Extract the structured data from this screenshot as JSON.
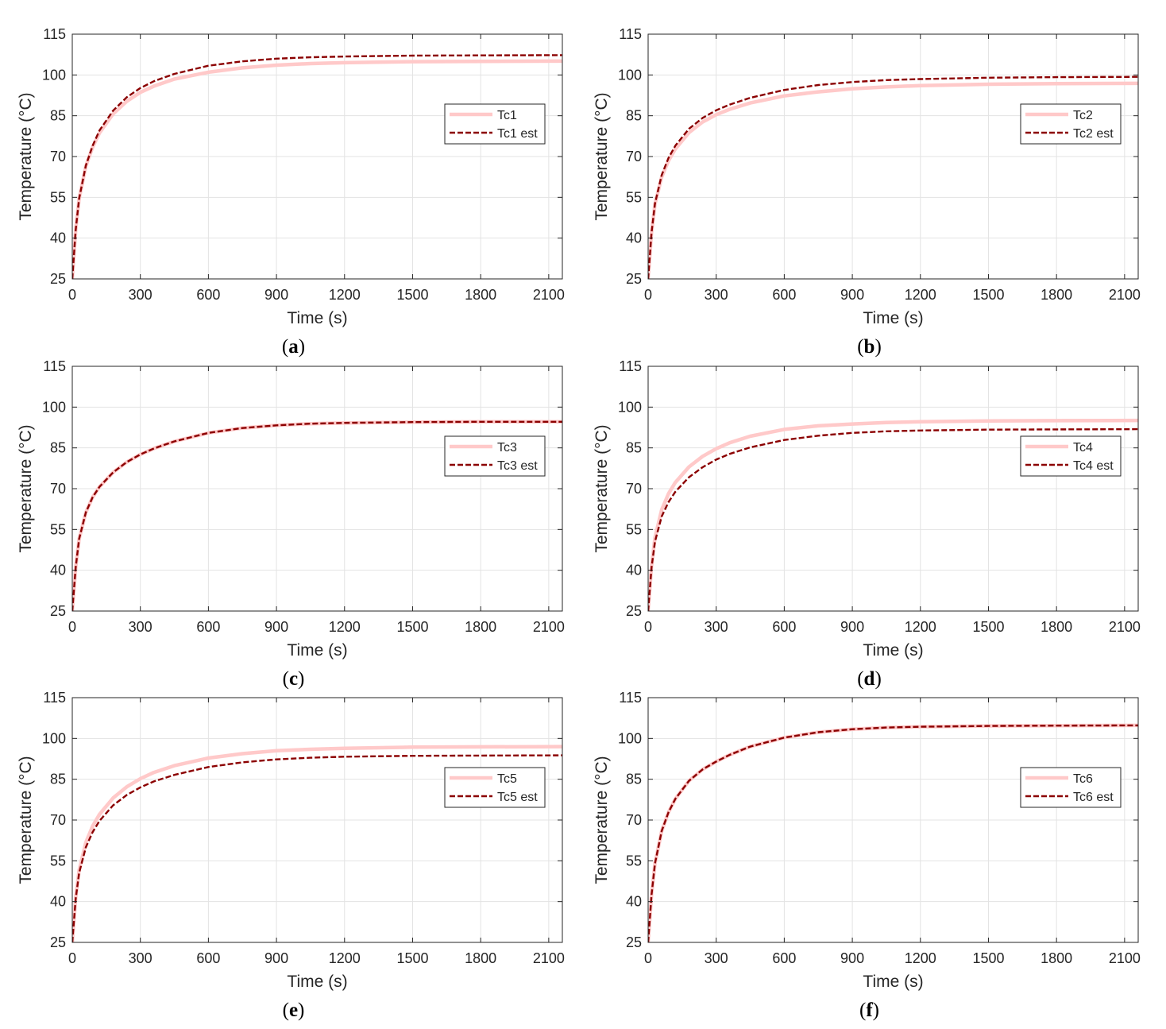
{
  "figure": {
    "colors": {
      "measured": "#ffc9c9",
      "estimated": "#8b0000",
      "grid": "#e3e3e3",
      "axis": "#262626"
    }
  },
  "chart_data": [
    {
      "type": "line",
      "panel": "(a)",
      "panel_letter": "a",
      "xlabel": "Time (s)",
      "ylabel": "Temperature (°C)",
      "xlim": [
        0,
        2160
      ],
      "ylim": [
        25,
        115
      ],
      "xticks": [
        0,
        300,
        600,
        900,
        1200,
        1500,
        1800,
        2100
      ],
      "yticks": [
        25,
        40,
        55,
        70,
        85,
        100,
        115
      ],
      "grid": true,
      "legend_position": "right",
      "x": [
        0,
        15,
        30,
        60,
        90,
        120,
        180,
        240,
        300,
        360,
        450,
        600,
        750,
        900,
        1050,
        1200,
        1500,
        1800,
        2160
      ],
      "series": [
        {
          "name": "Tc1",
          "style": "solid",
          "values": [
            25.0,
            43.0,
            54.5,
            66.5,
            73.5,
            78.7,
            85.7,
            90.3,
            93.6,
            95.9,
            98.5,
            101.0,
            102.6,
            103.6,
            104.2,
            104.5,
            104.9,
            105.0,
            105.1
          ]
        },
        {
          "name": "Tc1 est",
          "style": "dashed",
          "values": [
            25.0,
            43.0,
            54.5,
            66.7,
            74.0,
            79.6,
            86.9,
            91.8,
            95.2,
            97.7,
            100.4,
            103.4,
            105.0,
            106.0,
            106.5,
            106.8,
            107.1,
            107.2,
            107.3
          ]
        }
      ]
    },
    {
      "type": "line",
      "panel": "(b)",
      "panel_letter": "b",
      "xlabel": "Time (s)",
      "ylabel": "Temperature (°C)",
      "xlim": [
        0,
        2160
      ],
      "ylim": [
        25,
        115
      ],
      "xticks": [
        0,
        300,
        600,
        900,
        1200,
        1500,
        1800,
        2100
      ],
      "yticks": [
        25,
        40,
        55,
        70,
        85,
        100,
        115
      ],
      "grid": true,
      "legend_position": "right",
      "x": [
        0,
        15,
        30,
        60,
        90,
        120,
        180,
        240,
        300,
        360,
        450,
        600,
        750,
        900,
        1050,
        1200,
        1500,
        1800,
        2160
      ],
      "series": [
        {
          "name": "Tc2",
          "style": "solid",
          "values": [
            25.0,
            42.0,
            52.5,
            62.5,
            68.5,
            72.8,
            78.8,
            82.7,
            85.4,
            87.4,
            89.7,
            92.3,
            93.8,
            94.9,
            95.6,
            96.1,
            96.6,
            96.8,
            96.9
          ]
        },
        {
          "name": "Tc2 est",
          "style": "dashed",
          "values": [
            25.0,
            42.0,
            52.7,
            63.2,
            69.5,
            74.0,
            80.2,
            84.2,
            87.0,
            89.1,
            91.6,
            94.5,
            96.3,
            97.4,
            98.1,
            98.5,
            99.0,
            99.2,
            99.3
          ]
        }
      ]
    },
    {
      "type": "line",
      "panel": "(c)",
      "panel_letter": "c",
      "xlabel": "Time (s)",
      "ylabel": "Temperature (°C)",
      "xlim": [
        0,
        2160
      ],
      "ylim": [
        25,
        115
      ],
      "xticks": [
        0,
        300,
        600,
        900,
        1200,
        1500,
        1800,
        2100
      ],
      "yticks": [
        25,
        40,
        55,
        70,
        85,
        100,
        115
      ],
      "grid": true,
      "legend_position": "right",
      "x": [
        0,
        15,
        30,
        60,
        90,
        120,
        180,
        240,
        300,
        360,
        450,
        600,
        750,
        900,
        1050,
        1200,
        1500,
        1800,
        2160
      ],
      "series": [
        {
          "name": "Tc3",
          "style": "solid",
          "values": [
            25.0,
            41.0,
            51.5,
            61.3,
            66.9,
            70.7,
            76.0,
            79.8,
            82.6,
            84.8,
            87.4,
            90.5,
            92.3,
            93.3,
            93.9,
            94.2,
            94.5,
            94.6,
            94.6
          ]
        },
        {
          "name": "Tc3 est",
          "style": "dashed",
          "values": [
            25.0,
            41.0,
            51.5,
            61.3,
            66.9,
            70.7,
            76.0,
            79.8,
            82.6,
            84.8,
            87.4,
            90.5,
            92.3,
            93.3,
            93.9,
            94.2,
            94.5,
            94.6,
            94.6
          ]
        }
      ]
    },
    {
      "type": "line",
      "panel": "(d)",
      "panel_letter": "d",
      "xlabel": "Time (s)",
      "ylabel": "Temperature (°C)",
      "xlim": [
        0,
        2160
      ],
      "ylim": [
        25,
        115
      ],
      "xticks": [
        0,
        300,
        600,
        900,
        1200,
        1500,
        1800,
        2100
      ],
      "yticks": [
        25,
        40,
        55,
        70,
        85,
        100,
        115
      ],
      "grid": true,
      "legend_position": "right",
      "x": [
        0,
        15,
        30,
        60,
        90,
        120,
        180,
        240,
        300,
        360,
        450,
        600,
        750,
        900,
        1050,
        1200,
        1500,
        1800,
        2160
      ],
      "series": [
        {
          "name": "Tc4",
          "style": "solid",
          "values": [
            25.0,
            41.5,
            52.0,
            62.3,
            68.2,
            72.3,
            78.0,
            81.9,
            84.7,
            86.9,
            89.3,
            91.8,
            93.1,
            93.8,
            94.3,
            94.6,
            94.9,
            95.0,
            95.1
          ]
        },
        {
          "name": "Tc4 est",
          "style": "dashed",
          "values": [
            25.0,
            41.0,
            50.5,
            59.8,
            65.1,
            68.9,
            74.2,
            77.9,
            80.7,
            82.8,
            85.2,
            87.9,
            89.5,
            90.5,
            91.1,
            91.4,
            91.7,
            91.8,
            91.9
          ]
        }
      ]
    },
    {
      "type": "line",
      "panel": "(e)",
      "panel_letter": "e",
      "xlabel": "Time (s)",
      "ylabel": "Temperature (°C)",
      "xlim": [
        0,
        2160
      ],
      "ylim": [
        25,
        115
      ],
      "xticks": [
        0,
        300,
        600,
        900,
        1200,
        1500,
        1800,
        2100
      ],
      "yticks": [
        25,
        40,
        55,
        70,
        85,
        100,
        115
      ],
      "grid": true,
      "legend_position": "right",
      "x": [
        0,
        15,
        30,
        60,
        90,
        120,
        180,
        240,
        300,
        360,
        450,
        600,
        750,
        900,
        1050,
        1200,
        1500,
        1800,
        2160
      ],
      "series": [
        {
          "name": "Tc5",
          "style": "solid",
          "values": [
            25.0,
            41.5,
            51.5,
            61.8,
            67.8,
            72.1,
            78.1,
            82.2,
            85.2,
            87.5,
            90.0,
            92.8,
            94.4,
            95.5,
            96.0,
            96.4,
            96.8,
            96.9,
            97.0
          ]
        },
        {
          "name": "Tc5 est",
          "style": "dashed",
          "values": [
            25.0,
            41.0,
            50.5,
            60.0,
            65.6,
            69.7,
            75.4,
            79.2,
            82.0,
            84.2,
            86.6,
            89.5,
            91.2,
            92.3,
            92.9,
            93.3,
            93.6,
            93.7,
            93.8
          ]
        }
      ]
    },
    {
      "type": "line",
      "panel": "(f)",
      "panel_letter": "f",
      "xlabel": "Time (s)",
      "ylabel": "Temperature (°C)",
      "xlim": [
        0,
        2160
      ],
      "ylim": [
        25,
        115
      ],
      "xticks": [
        0,
        300,
        600,
        900,
        1200,
        1500,
        1800,
        2100
      ],
      "yticks": [
        25,
        40,
        55,
        70,
        85,
        100,
        115
      ],
      "grid": true,
      "legend_position": "right",
      "x": [
        0,
        15,
        30,
        60,
        90,
        120,
        180,
        240,
        300,
        360,
        450,
        600,
        750,
        900,
        1050,
        1200,
        1500,
        1800,
        2160
      ],
      "series": [
        {
          "name": "Tc6",
          "style": "solid",
          "values": [
            25.0,
            42.5,
            54.0,
            66.0,
            72.9,
            77.8,
            84.4,
            88.6,
            91.5,
            94.0,
            97.0,
            100.3,
            102.3,
            103.4,
            104.0,
            104.3,
            104.6,
            104.7,
            104.8
          ]
        },
        {
          "name": "Tc6 est",
          "style": "dashed",
          "values": [
            25.0,
            42.5,
            54.0,
            66.0,
            72.9,
            77.8,
            84.4,
            88.6,
            91.5,
            94.0,
            97.0,
            100.3,
            102.3,
            103.4,
            104.0,
            104.3,
            104.6,
            104.7,
            104.8
          ]
        }
      ]
    }
  ]
}
